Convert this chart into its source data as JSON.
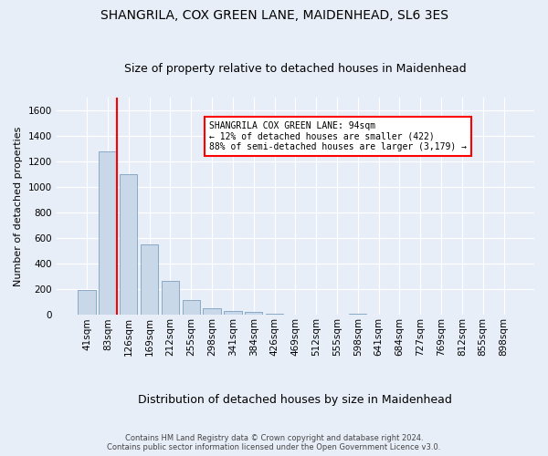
{
  "title": "SHANGRILA, COX GREEN LANE, MAIDENHEAD, SL6 3ES",
  "subtitle": "Size of property relative to detached houses in Maidenhead",
  "xlabel": "Distribution of detached houses by size in Maidenhead",
  "ylabel": "Number of detached properties",
  "footer_line1": "Contains HM Land Registry data © Crown copyright and database right 2024.",
  "footer_line2": "Contains public sector information licensed under the Open Government Licence v3.0.",
  "bar_color": "#c8d8e8",
  "bar_edge_color": "#7ba0c0",
  "annotation_text": "SHANGRILA COX GREEN LANE: 94sqm\n← 12% of detached houses are smaller (422)\n88% of semi-detached houses are larger (3,179) →",
  "categories": [
    "41sqm",
    "83sqm",
    "126sqm",
    "169sqm",
    "212sqm",
    "255sqm",
    "298sqm",
    "341sqm",
    "384sqm",
    "426sqm",
    "469sqm",
    "512sqm",
    "555sqm",
    "598sqm",
    "641sqm",
    "684sqm",
    "727sqm",
    "769sqm",
    "812sqm",
    "855sqm",
    "898sqm"
  ],
  "values": [
    197,
    1275,
    1100,
    555,
    265,
    120,
    55,
    32,
    22,
    12,
    0,
    0,
    0,
    12,
    0,
    0,
    0,
    0,
    0,
    0,
    0
  ],
  "ylim": [
    0,
    1700
  ],
  "yticks": [
    0,
    200,
    400,
    600,
    800,
    1000,
    1200,
    1400,
    1600
  ],
  "background_color": "#e8eef8",
  "grid_color": "#ffffff",
  "title_fontsize": 10,
  "subtitle_fontsize": 9,
  "ylabel_fontsize": 8,
  "xlabel_fontsize": 9,
  "tick_fontsize": 7.5,
  "annotation_fontsize": 7,
  "footer_fontsize": 6
}
